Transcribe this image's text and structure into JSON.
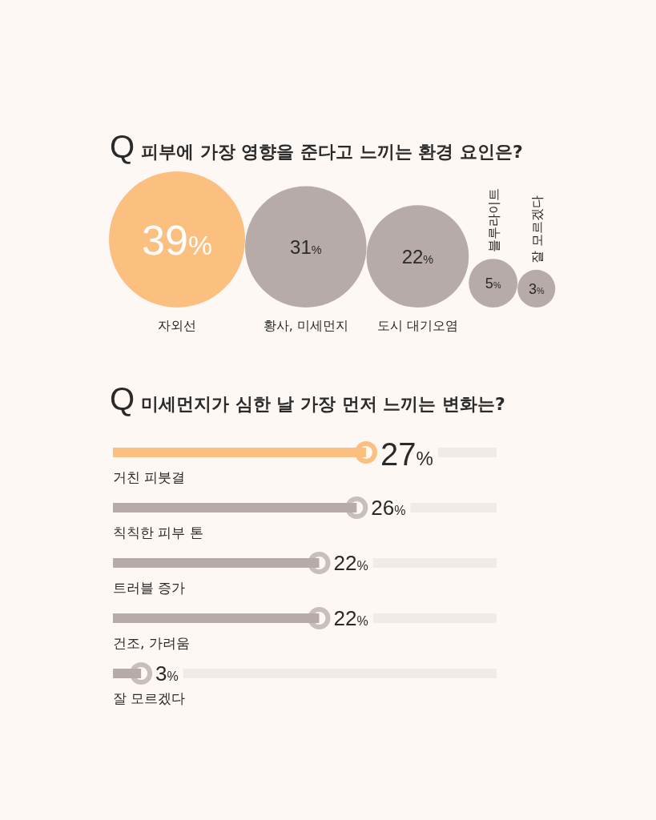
{
  "chart_data": [
    {
      "type": "other",
      "title": "Q 피부에 가장 영향을 준다고 느끼는 환경 요인은?",
      "categories": [
        "자외선",
        "황사, 미세먼지",
        "도시 대기오염",
        "블루라이트",
        "잘 모르겠다"
      ],
      "values": [
        39,
        31,
        22,
        5,
        3
      ],
      "value_labels": [
        "39%",
        "31%",
        "22%",
        "5%",
        "3%"
      ],
      "colors": [
        "#fbbf80",
        "#b6aba8",
        "#b6aba8",
        "#b6aba8",
        "#b6aba8"
      ]
    },
    {
      "type": "bar",
      "orientation": "horizontal",
      "title": "Q 미세먼지가 심한 날 가장 먼저 느끼는 변화는?",
      "categories": [
        "거친 피붓결",
        "칙칙한 피부 톤",
        "트러블 증가",
        "건조, 가려움",
        "잘 모르겠다"
      ],
      "values": [
        27,
        26,
        22,
        22,
        3
      ],
      "value_labels": [
        "27%",
        "26%",
        "22%",
        "22%",
        "3%"
      ],
      "colors": [
        "#fbbf80",
        "#b6aba8",
        "#b6aba8",
        "#b6aba8",
        "#b6aba8"
      ]
    }
  ]
}
